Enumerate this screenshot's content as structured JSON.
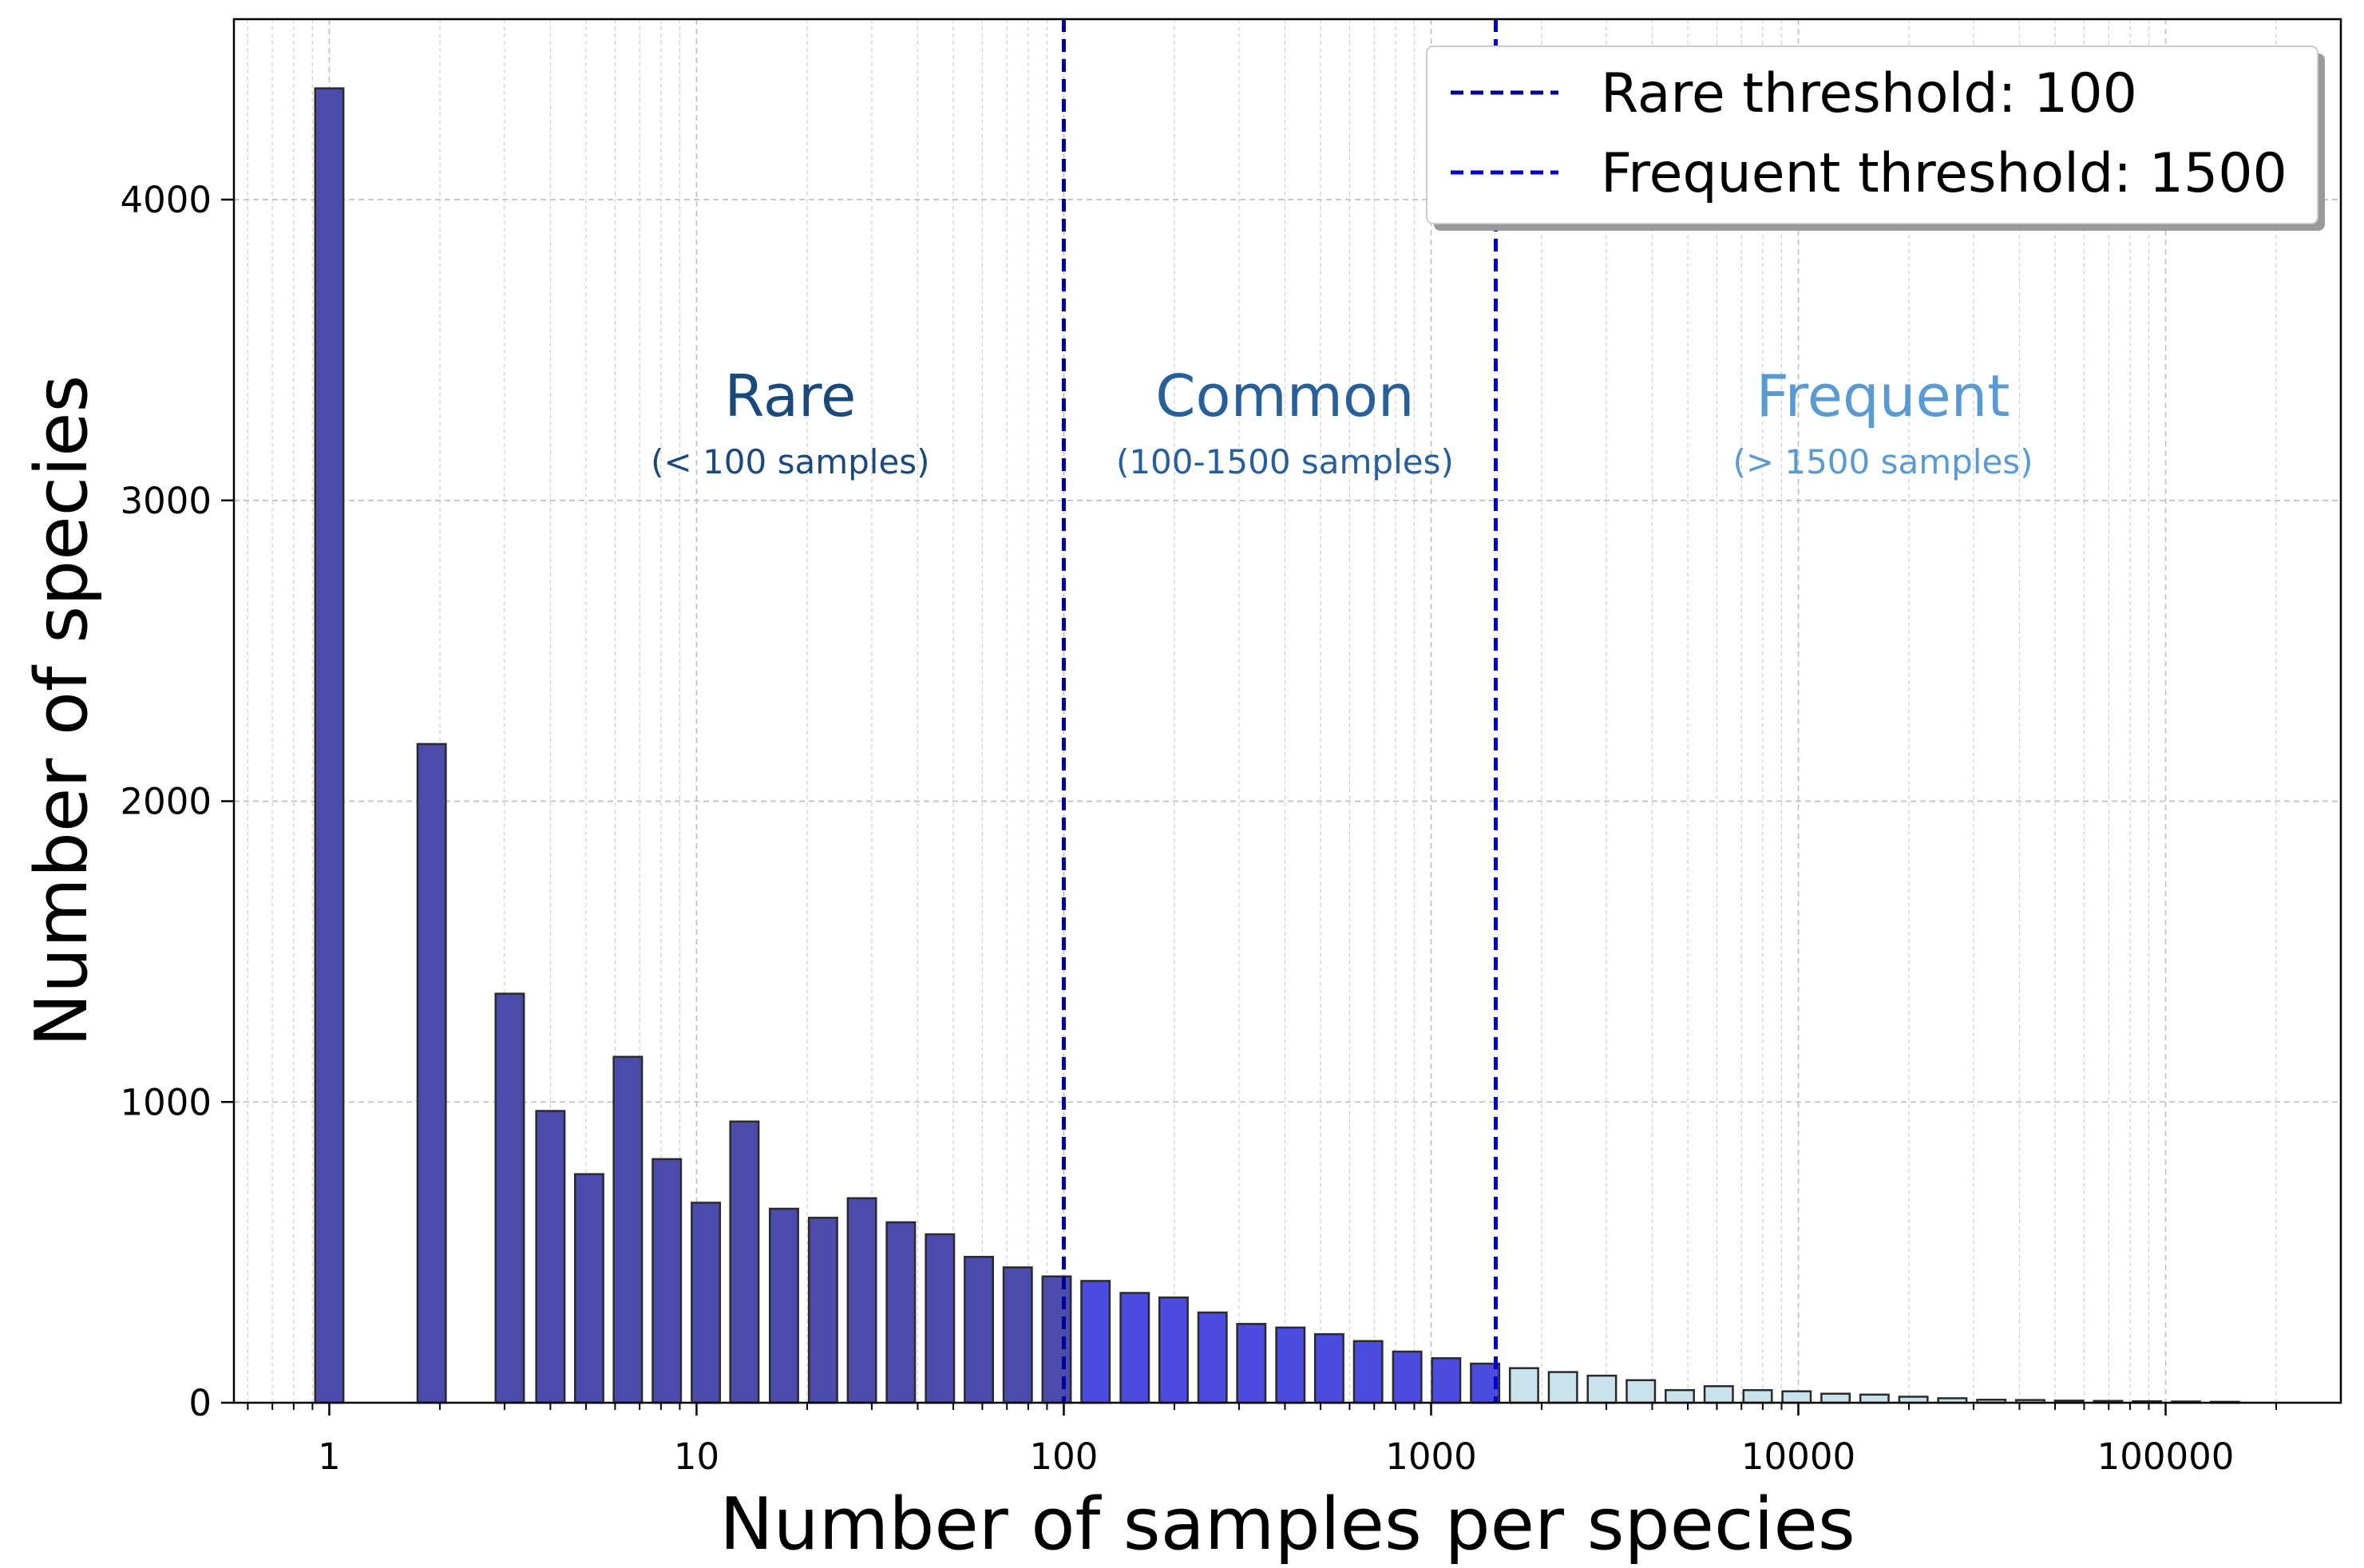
{
  "chart_data": {
    "type": "bar",
    "xscale": "log",
    "xlabel": "Number of samples per species",
    "ylabel": "Number of species",
    "xlim": [
      0.55,
      300000
    ],
    "ylim": [
      0,
      4600
    ],
    "grid": true,
    "xticks": [
      {
        "value": 1,
        "label": "1"
      },
      {
        "value": 10,
        "label": "10"
      },
      {
        "value": 100,
        "label": "100"
      },
      {
        "value": 1000,
        "label": "1000"
      },
      {
        "value": 10000,
        "label": "10000"
      },
      {
        "value": 100000,
        "label": "100000"
      }
    ],
    "yticks": [
      {
        "value": 0,
        "label": "0"
      },
      {
        "value": 1000,
        "label": "1000"
      },
      {
        "value": 2000,
        "label": "2000"
      },
      {
        "value": 3000,
        "label": "3000"
      },
      {
        "value": 4000,
        "label": "4000"
      }
    ],
    "bins": [
      {
        "center": 1.0,
        "value": 4370,
        "group": "rare"
      },
      {
        "center": 1.9,
        "value": 2190,
        "group": "rare"
      },
      {
        "center": 3.1,
        "value": 1360,
        "group": "rare"
      },
      {
        "center": 4.0,
        "value": 970,
        "group": "rare"
      },
      {
        "center": 5.1,
        "value": 760,
        "group": "rare"
      },
      {
        "center": 6.5,
        "value": 1150,
        "group": "rare"
      },
      {
        "center": 8.3,
        "value": 810,
        "group": "rare"
      },
      {
        "center": 10.6,
        "value": 665,
        "group": "rare"
      },
      {
        "center": 13.5,
        "value": 935,
        "group": "rare"
      },
      {
        "center": 17.3,
        "value": 645,
        "group": "rare"
      },
      {
        "center": 22.1,
        "value": 615,
        "group": "rare"
      },
      {
        "center": 28.2,
        "value": 680,
        "group": "rare"
      },
      {
        "center": 36.0,
        "value": 600,
        "group": "rare"
      },
      {
        "center": 46.0,
        "value": 560,
        "group": "rare"
      },
      {
        "center": 58.7,
        "value": 485,
        "group": "rare"
      },
      {
        "center": 74.9,
        "value": 450,
        "group": "rare"
      },
      {
        "center": 95.6,
        "value": 420,
        "group": "rare"
      },
      {
        "center": 122,
        "value": 405,
        "group": "common"
      },
      {
        "center": 156,
        "value": 365,
        "group": "common"
      },
      {
        "center": 199,
        "value": 350,
        "group": "common"
      },
      {
        "center": 254,
        "value": 300,
        "group": "common"
      },
      {
        "center": 324,
        "value": 262,
        "group": "common"
      },
      {
        "center": 414,
        "value": 250,
        "group": "common"
      },
      {
        "center": 528,
        "value": 228,
        "group": "common"
      },
      {
        "center": 674,
        "value": 205,
        "group": "common"
      },
      {
        "center": 861,
        "value": 170,
        "group": "common"
      },
      {
        "center": 1099,
        "value": 148,
        "group": "common"
      },
      {
        "center": 1403,
        "value": 130,
        "group": "common"
      },
      {
        "center": 1791,
        "value": 115,
        "group": "frequent"
      },
      {
        "center": 2286,
        "value": 102,
        "group": "frequent"
      },
      {
        "center": 2918,
        "value": 90,
        "group": "frequent"
      },
      {
        "center": 3725,
        "value": 75,
        "group": "frequent"
      },
      {
        "center": 4755,
        "value": 42,
        "group": "frequent"
      },
      {
        "center": 6070,
        "value": 55,
        "group": "frequent"
      },
      {
        "center": 7748,
        "value": 42,
        "group": "frequent"
      },
      {
        "center": 9890,
        "value": 38,
        "group": "frequent"
      },
      {
        "center": 12625,
        "value": 30,
        "group": "frequent"
      },
      {
        "center": 16116,
        "value": 27,
        "group": "frequent"
      },
      {
        "center": 20572,
        "value": 20,
        "group": "frequent"
      },
      {
        "center": 26261,
        "value": 15,
        "group": "frequent"
      },
      {
        "center": 33522,
        "value": 10,
        "group": "frequent"
      },
      {
        "center": 42791,
        "value": 9,
        "group": "frequent"
      },
      {
        "center": 54624,
        "value": 7,
        "group": "frequent"
      },
      {
        "center": 69729,
        "value": 6,
        "group": "frequent"
      },
      {
        "center": 89011,
        "value": 5,
        "group": "frequent"
      },
      {
        "center": 113624,
        "value": 4,
        "group": "frequent"
      },
      {
        "center": 145044,
        "value": 3,
        "group": "frequent"
      }
    ],
    "group_colors": {
      "rare": "#4b4bab",
      "common": "#4b4be0",
      "frequent": "#c8e3ec"
    },
    "thresholds": [
      {
        "value": 100,
        "legend": "Rare threshold: 100",
        "color": "#000099"
      },
      {
        "value": 1500,
        "legend": "Frequent threshold: 1500",
        "color": "#0000cc"
      }
    ],
    "regions": [
      {
        "title": "Rare",
        "subtitle": "(< 100 samples)",
        "x": 18,
        "color": "#1a4a7c"
      },
      {
        "title": "Common",
        "subtitle": "(100-1500 samples)",
        "x": 400,
        "color": "#275f9b"
      },
      {
        "title": "Frequent",
        "subtitle": "(> 1500 samples)",
        "x": 17000,
        "color": "#5a9ad2"
      }
    ],
    "legend_position": "top-right"
  }
}
